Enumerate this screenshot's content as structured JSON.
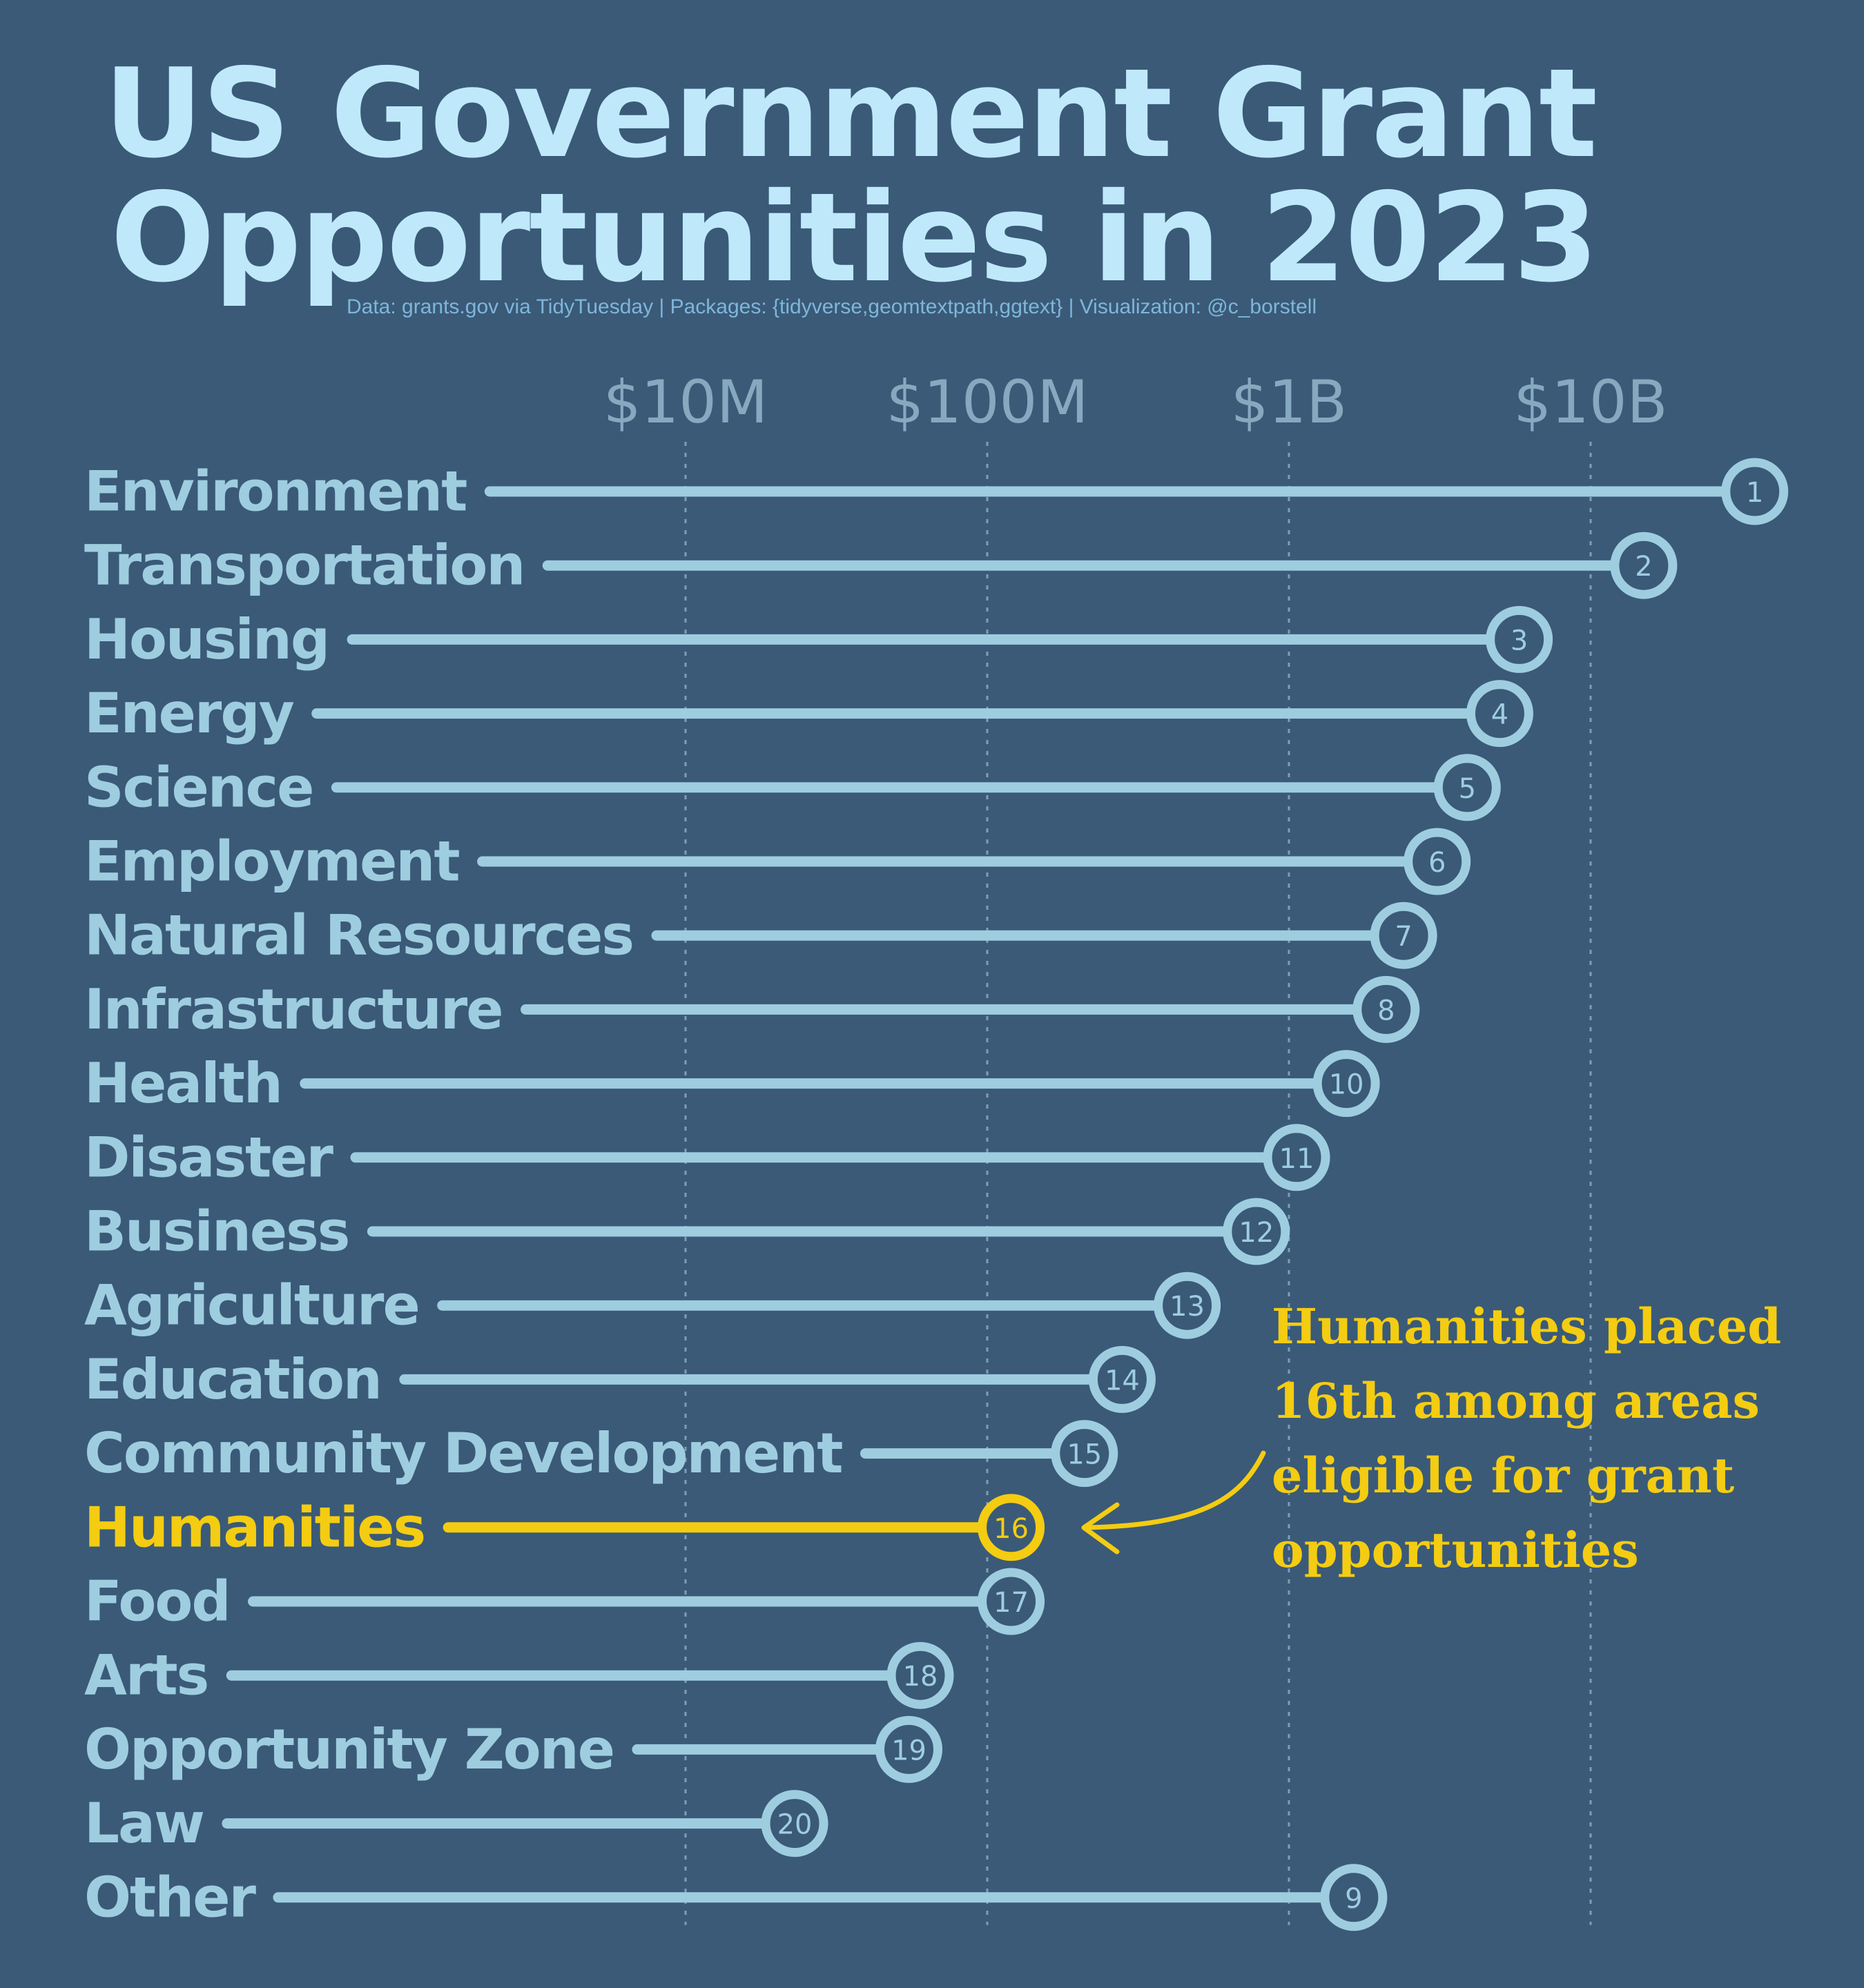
{
  "title": {
    "line1": "US Government Grant",
    "line2": "Opportunities in 2023"
  },
  "caption": "Data: grants.gov via TidyTuesday | Packages: {tidyverse,geomtextpath,ggtext} | Visualization: @c_borstell",
  "annotation": {
    "lines": [
      "Humanities placed",
      "16th among areas",
      "eligible for grant",
      "opportunities"
    ]
  },
  "colors": {
    "background": "#3a5a78",
    "bar": "#9fcde0",
    "highlight": "#f4cc12",
    "tick_label": "#86a9bf",
    "title": "#bfe9fb",
    "caption": "#7fb6da",
    "gridline": "#8fb0c6"
  },
  "chart_data": {
    "type": "lollipop",
    "x_scale": "log10",
    "xlabel": "",
    "ylabel": "",
    "x_ticks": [
      {
        "value": 10000000,
        "label": "$10M"
      },
      {
        "value": 100000000,
        "label": "$100M"
      },
      {
        "value": 1000000000,
        "label": "$1B"
      },
      {
        "value": 10000000000,
        "label": "$10B"
      }
    ],
    "grid": "vertical dotted",
    "highlight_category": "Humanities",
    "categories": [
      {
        "name": "Environment",
        "rank": "1",
        "value": 35000000000
      },
      {
        "name": "Transportation",
        "rank": "2",
        "value": 15000000000
      },
      {
        "name": "Housing",
        "rank": "3",
        "value": 5800000000
      },
      {
        "name": "Energy",
        "rank": "4",
        "value": 5000000000
      },
      {
        "name": "Science",
        "rank": "5",
        "value": 3900000000
      },
      {
        "name": "Employment",
        "rank": "6",
        "value": 3100000000
      },
      {
        "name": "Natural Resources",
        "rank": "7",
        "value": 2400000000
      },
      {
        "name": "Infrastructure",
        "rank": "8",
        "value": 2100000000
      },
      {
        "name": "Health",
        "rank": "10",
        "value": 1550000000
      },
      {
        "name": "Disaster",
        "rank": "11",
        "value": 1060000000
      },
      {
        "name": "Business",
        "rank": "12",
        "value": 780000000
      },
      {
        "name": "Agriculture",
        "rank": "13",
        "value": 460000000
      },
      {
        "name": "Education",
        "rank": "14",
        "value": 280000000
      },
      {
        "name": "Community Development",
        "rank": "15",
        "value": 210000000
      },
      {
        "name": "Humanities",
        "rank": "16",
        "value": 120000000
      },
      {
        "name": "Food",
        "rank": "17",
        "value": 120000000
      },
      {
        "name": "Arts",
        "rank": "18",
        "value": 60000000
      },
      {
        "name": "Opportunity Zone",
        "rank": "19",
        "value": 55000000
      },
      {
        "name": "Law",
        "rank": "20",
        "value": 23000000
      },
      {
        "name": "Other",
        "rank": "9",
        "value": 1640000000
      }
    ]
  }
}
